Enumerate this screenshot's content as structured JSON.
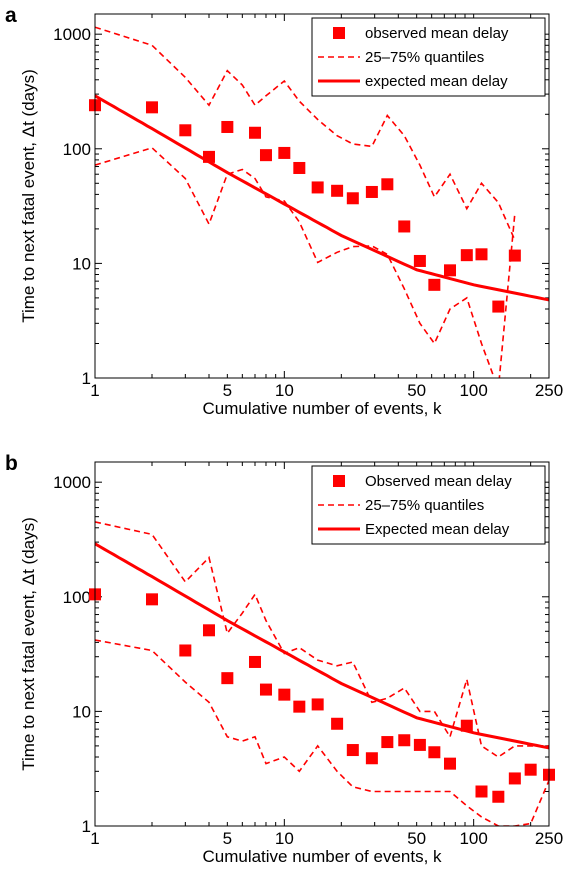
{
  "chart_data": [
    {
      "type": "scatter",
      "panel_label": "a",
      "xlabel": "Cumulative number of events, k",
      "ylabel": "Time to next fatal event, Δt (days)",
      "xscale": "log",
      "yscale": "log",
      "xlim": [
        1,
        250
      ],
      "ylim": [
        1,
        1500
      ],
      "xticks": [
        1,
        5,
        10,
        50,
        100,
        250
      ],
      "xtick_labels": [
        "1",
        "5",
        "10",
        "50",
        "100",
        "250"
      ],
      "yticks": [
        1,
        10,
        100,
        1000
      ],
      "ytick_labels": [
        "1",
        "10",
        "100",
        "1000"
      ],
      "grid": false,
      "legend_position": "top-right",
      "series": [
        {
          "name": "observed mean delay",
          "style": "square-markers",
          "color": "#ff0000",
          "x": [
            1,
            2,
            3,
            4,
            5,
            7,
            8,
            10,
            12,
            15,
            19,
            23,
            29,
            35,
            43,
            52,
            62,
            75,
            92,
            110,
            135,
            165
          ],
          "y": [
            240,
            230,
            145,
            85,
            155,
            138,
            88,
            92,
            68,
            46,
            43,
            37,
            42,
            49,
            21,
            10.5,
            6.5,
            8.7,
            11.8,
            12,
            4.2,
            11.7
          ]
        },
        {
          "name": "25–75% quantiles",
          "style": "dashed-line",
          "color": "#ff0000",
          "bands": [
            {
              "x": [
                1,
                2,
                3,
                4,
                5,
                6,
                7,
                8,
                10,
                12,
                15,
                19,
                23,
                29,
                35,
                43,
                52,
                62,
                75,
                92,
                110,
                135,
                165
              ],
              "y": [
                1150,
                800,
                420,
                240,
                480,
                360,
                240,
                290,
                390,
                260,
                180,
                130,
                110,
                105,
                195,
                130,
                72,
                38,
                60,
                30,
                50,
                34,
                16
              ]
            },
            {
              "x": [
                1,
                2,
                3,
                4,
                5,
                6,
                7,
                8,
                10,
                12,
                15,
                19,
                23,
                29,
                35,
                43,
                52,
                62,
                75,
                92,
                110,
                135,
                165
              ],
              "y": [
                72,
                102,
                55,
                22,
                60,
                66,
                55,
                38,
                35,
                23,
                10.2,
                12.5,
                14,
                14.2,
                12,
                6,
                3,
                2,
                4,
                5,
                2,
                0.8,
                27
              ]
            }
          ]
        },
        {
          "name": "expected mean delay",
          "style": "solid-line",
          "color": "#ff0000",
          "x": [
            1,
            2,
            5,
            10,
            20,
            50,
            100,
            250
          ],
          "y": [
            290,
            150,
            62,
            33,
            17.5,
            8.8,
            6.5,
            4.8
          ]
        }
      ]
    },
    {
      "type": "scatter",
      "panel_label": "b",
      "xlabel": "Cumulative number of events, k",
      "ylabel": "Time to next fatal event, Δt (days)",
      "xscale": "log",
      "yscale": "log",
      "xlim": [
        1,
        250
      ],
      "ylim": [
        1,
        1500
      ],
      "xticks": [
        1,
        5,
        10,
        50,
        100,
        250
      ],
      "xtick_labels": [
        "1",
        "5",
        "10",
        "50",
        "100",
        "250"
      ],
      "yticks": [
        1,
        10,
        100,
        1000
      ],
      "ytick_labels": [
        "1",
        "10",
        "100",
        "1000"
      ],
      "grid": false,
      "legend_position": "top-right",
      "series": [
        {
          "name": "Observed mean delay",
          "style": "square-markers",
          "color": "#ff0000",
          "x": [
            1,
            2,
            3,
            4,
            5,
            7,
            8,
            10,
            12,
            15,
            19,
            23,
            29,
            35,
            43,
            52,
            62,
            75,
            92,
            110,
            135,
            165,
            200,
            250
          ],
          "y": [
            105,
            95,
            34,
            51,
            19.5,
            27,
            15.5,
            14,
            11,
            11.5,
            7.8,
            4.6,
            3.9,
            5.4,
            5.6,
            5.1,
            4.4,
            3.5,
            7.5,
            2,
            1.8,
            2.6,
            3.1,
            2.8
          ]
        },
        {
          "name": "25–75% quantiles",
          "style": "dashed-line",
          "color": "#ff0000",
          "bands": [
            {
              "x": [
                1,
                2,
                3,
                4,
                5,
                6,
                7,
                8,
                10,
                12,
                15,
                19,
                23,
                29,
                35,
                43,
                52,
                62,
                75,
                92,
                110,
                135,
                165,
                200,
                250
              ],
              "y": [
                450,
                350,
                135,
                220,
                48,
                72,
                105,
                62,
                32,
                36,
                28,
                25,
                27,
                12,
                13,
                16,
                10,
                10,
                6,
                19,
                5,
                4,
                5,
                5,
                5
              ]
            },
            {
              "x": [
                1,
                2,
                3,
                4,
                5,
                6,
                7,
                8,
                10,
                12,
                15,
                19,
                23,
                29,
                35,
                43,
                52,
                62,
                75,
                92,
                110,
                135,
                165,
                200,
                250
              ],
              "y": [
                42,
                34,
                18,
                12,
                6,
                5.5,
                6,
                3.5,
                4,
                3,
                5,
                3,
                2.2,
                2,
                2,
                2,
                2,
                2,
                2,
                1.5,
                1.2,
                1,
                1,
                1.05,
                2.5
              ]
            }
          ]
        },
        {
          "name": "Expected mean delay",
          "style": "solid-line",
          "color": "#ff0000",
          "x": [
            1,
            2,
            5,
            10,
            20,
            50,
            100,
            250
          ],
          "y": [
            290,
            150,
            62,
            33,
            17.5,
            8.8,
            6.5,
            4.8
          ]
        }
      ]
    }
  ]
}
